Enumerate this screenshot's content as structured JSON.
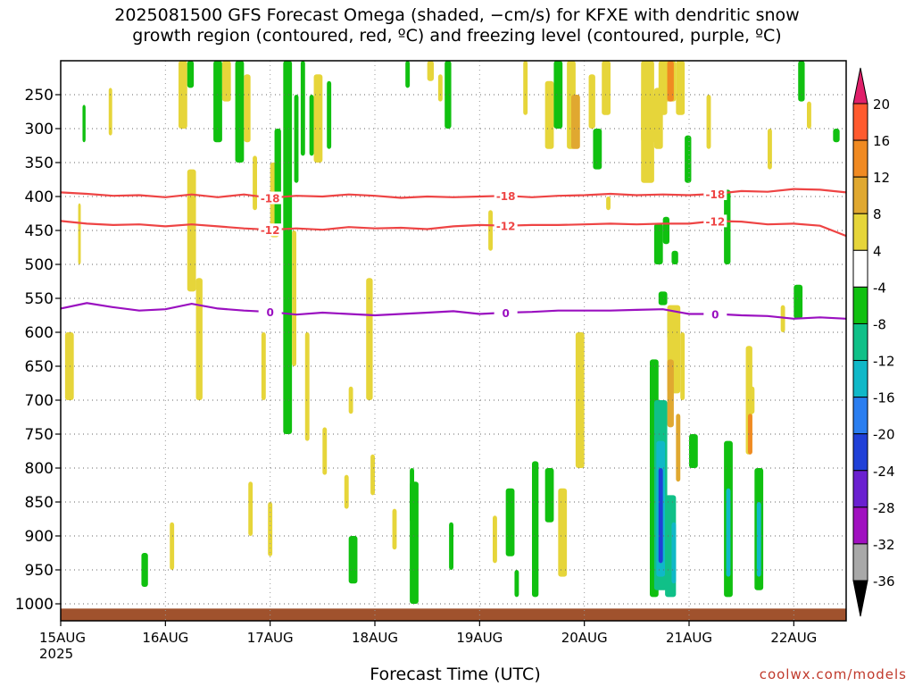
{
  "title": "2025081500 GFS Forecast Omega (shaded, −cm/s) for KFXE with dendritic snow\ngrowth region (contoured, red, ºC) and freezing level (contoured, purple, ºC)",
  "credit": "coolwx.com/models",
  "chart_data": {
    "type": "heatmap",
    "xlabel": "Forecast Time (UTC)",
    "ylabel": "",
    "x_ticks": [
      "15AUG\n2025",
      "16AUG",
      "17AUG",
      "18AUG",
      "19AUG",
      "20AUG",
      "21AUG",
      "22AUG"
    ],
    "x_range_hours": [
      0,
      180
    ],
    "y_scale": "pressure",
    "y_ticks": [
      250,
      300,
      350,
      400,
      450,
      500,
      550,
      600,
      650,
      700,
      750,
      800,
      850,
      900,
      950,
      1000
    ],
    "y_range_hpa": [
      200,
      1025
    ],
    "colorbar": {
      "ticks": [
        20,
        16,
        12,
        8,
        4,
        -4,
        -8,
        -12,
        -16,
        -20,
        -24,
        -28,
        -32,
        -36
      ],
      "bins": [
        {
          "from": 20,
          "to": 24,
          "color": "#ff3f3f"
        },
        {
          "from": 16,
          "to": 20,
          "color": "#ff5a2e"
        },
        {
          "from": 12,
          "to": 16,
          "color": "#f08a22"
        },
        {
          "from": 8,
          "to": 12,
          "color": "#e0a830"
        },
        {
          "from": 4,
          "to": 8,
          "color": "#e6d53a"
        },
        {
          "from": -4,
          "to": 4,
          "color": "#ffffff"
        },
        {
          "from": -8,
          "to": -4,
          "color": "#10c010"
        },
        {
          "from": -12,
          "to": -8,
          "color": "#10c088"
        },
        {
          "from": -16,
          "to": -12,
          "color": "#10b8c8"
        },
        {
          "from": -20,
          "to": -16,
          "color": "#2a7ef0"
        },
        {
          "from": -24,
          "to": -20,
          "color": "#2040d8"
        },
        {
          "from": -28,
          "to": -24,
          "color": "#6a20d0"
        },
        {
          "from": -32,
          "to": -28,
          "color": "#a010c0"
        },
        {
          "from": -36,
          "to": -32,
          "color": "#a8a8a8"
        }
      ],
      "top_arrow_color": "#e0206a",
      "bottom_arrow_color": "#000000"
    },
    "contours": [
      {
        "label": "-18",
        "color": "#ee4444",
        "points": [
          [
            0,
            394
          ],
          [
            6,
            396
          ],
          [
            12,
            399
          ],
          [
            18,
            398
          ],
          [
            24,
            401
          ],
          [
            30,
            397
          ],
          [
            36,
            401
          ],
          [
            42,
            397
          ],
          [
            48,
            402
          ],
          [
            54,
            399
          ],
          [
            60,
            400
          ],
          [
            66,
            397
          ],
          [
            72,
            399
          ],
          [
            78,
            402
          ],
          [
            84,
            400
          ],
          [
            90,
            401
          ],
          [
            96,
            400
          ],
          [
            102,
            399
          ],
          [
            108,
            401
          ],
          [
            114,
            399
          ],
          [
            120,
            398
          ],
          [
            126,
            396
          ],
          [
            132,
            398
          ],
          [
            138,
            397
          ],
          [
            144,
            398
          ],
          [
            150,
            396
          ],
          [
            156,
            392
          ],
          [
            162,
            393
          ],
          [
            168,
            389
          ],
          [
            174,
            390
          ],
          [
            180,
            394
          ]
        ]
      },
      {
        "label": "-12",
        "color": "#ee4444",
        "points": [
          [
            0,
            436
          ],
          [
            6,
            440
          ],
          [
            12,
            442
          ],
          [
            18,
            441
          ],
          [
            24,
            444
          ],
          [
            30,
            441
          ],
          [
            36,
            444
          ],
          [
            42,
            447
          ],
          [
            48,
            449
          ],
          [
            54,
            447
          ],
          [
            60,
            449
          ],
          [
            66,
            445
          ],
          [
            72,
            447
          ],
          [
            78,
            446
          ],
          [
            84,
            448
          ],
          [
            90,
            444
          ],
          [
            96,
            442
          ],
          [
            102,
            443
          ],
          [
            108,
            442
          ],
          [
            114,
            442
          ],
          [
            120,
            441
          ],
          [
            126,
            440
          ],
          [
            132,
            441
          ],
          [
            138,
            440
          ],
          [
            144,
            440
          ],
          [
            150,
            436
          ],
          [
            156,
            437
          ],
          [
            162,
            441
          ],
          [
            168,
            440
          ],
          [
            174,
            443
          ],
          [
            180,
            458
          ]
        ]
      },
      {
        "label": "0",
        "color": "#9a10c0",
        "points": [
          [
            0,
            565
          ],
          [
            6,
            557
          ],
          [
            12,
            563
          ],
          [
            18,
            568
          ],
          [
            24,
            566
          ],
          [
            30,
            558
          ],
          [
            36,
            565
          ],
          [
            42,
            568
          ],
          [
            48,
            570
          ],
          [
            54,
            574
          ],
          [
            60,
            571
          ],
          [
            66,
            573
          ],
          [
            72,
            575
          ],
          [
            78,
            573
          ],
          [
            84,
            571
          ],
          [
            90,
            569
          ],
          [
            96,
            573
          ],
          [
            102,
            571
          ],
          [
            108,
            570
          ],
          [
            114,
            568
          ],
          [
            120,
            568
          ],
          [
            126,
            568
          ],
          [
            132,
            567
          ],
          [
            138,
            566
          ],
          [
            144,
            573
          ],
          [
            150,
            573
          ],
          [
            156,
            575
          ],
          [
            162,
            576
          ],
          [
            168,
            580
          ],
          [
            174,
            578
          ],
          [
            180,
            580
          ]
        ]
      }
    ],
    "shaded_regions": [
      {
        "x0": 5,
        "x1": 5.7,
        "p0": 265,
        "p1": 320,
        "value": -6
      },
      {
        "x0": 11,
        "x1": 11.8,
        "p0": 240,
        "p1": 310,
        "value": 6
      },
      {
        "x0": 1,
        "x1": 3,
        "p0": 600,
        "p1": 700,
        "value": 6
      },
      {
        "x0": 4,
        "x1": 4.6,
        "p0": 410,
        "p1": 500,
        "value": 6
      },
      {
        "x0": 18.5,
        "x1": 20,
        "p0": 925,
        "p1": 975,
        "value": -6
      },
      {
        "x0": 25,
        "x1": 26,
        "p0": 880,
        "p1": 950,
        "value": 6
      },
      {
        "x0": 27,
        "x1": 29,
        "p0": 200,
        "p1": 300,
        "value": 6
      },
      {
        "x0": 29,
        "x1": 30.5,
        "p0": 200,
        "p1": 240,
        "value": -6
      },
      {
        "x0": 29,
        "x1": 31,
        "p0": 360,
        "p1": 540,
        "value": 6
      },
      {
        "x0": 31,
        "x1": 32.5,
        "p0": 520,
        "p1": 700,
        "value": 6
      },
      {
        "x0": 35,
        "x1": 37,
        "p0": 200,
        "p1": 320,
        "value": -6
      },
      {
        "x0": 37,
        "x1": 39,
        "p0": 200,
        "p1": 260,
        "value": 6
      },
      {
        "x0": 40,
        "x1": 42,
        "p0": 200,
        "p1": 350,
        "value": -6
      },
      {
        "x0": 42,
        "x1": 43.5,
        "p0": 220,
        "p1": 320,
        "value": 6
      },
      {
        "x0": 43,
        "x1": 44,
        "p0": 820,
        "p1": 900,
        "value": 6
      },
      {
        "x0": 44,
        "x1": 45,
        "p0": 340,
        "p1": 420,
        "value": 6
      },
      {
        "x0": 46,
        "x1": 47,
        "p0": 600,
        "p1": 700,
        "value": 6
      },
      {
        "x0": 47.5,
        "x1": 48.5,
        "p0": 850,
        "p1": 930,
        "value": 6
      },
      {
        "x0": 48,
        "x1": 50,
        "p0": 350,
        "p1": 460,
        "value": 6
      },
      {
        "x0": 49,
        "x1": 50.5,
        "p0": 300,
        "p1": 450,
        "value": -6
      },
      {
        "x0": 51,
        "x1": 53,
        "p0": 200,
        "p1": 750,
        "value": -6
      },
      {
        "x0": 53,
        "x1": 54,
        "p0": 450,
        "p1": 650,
        "value": 6
      },
      {
        "x0": 53.5,
        "x1": 54.5,
        "p0": 250,
        "p1": 380,
        "value": -6
      },
      {
        "x0": 55,
        "x1": 56,
        "p0": 200,
        "p1": 340,
        "value": -6
      },
      {
        "x0": 56,
        "x1": 57,
        "p0": 600,
        "p1": 760,
        "value": 6
      },
      {
        "x0": 57,
        "x1": 58,
        "p0": 250,
        "p1": 340,
        "value": -6
      },
      {
        "x0": 58,
        "x1": 60,
        "p0": 220,
        "p1": 350,
        "value": 6
      },
      {
        "x0": 60,
        "x1": 61,
        "p0": 740,
        "p1": 810,
        "value": 6
      },
      {
        "x0": 61,
        "x1": 62,
        "p0": 230,
        "p1": 330,
        "value": -6
      },
      {
        "x0": 65,
        "x1": 66,
        "p0": 810,
        "p1": 860,
        "value": 6
      },
      {
        "x0": 66,
        "x1": 68,
        "p0": 900,
        "p1": 970,
        "value": -6
      },
      {
        "x0": 66,
        "x1": 67,
        "p0": 680,
        "p1": 720,
        "value": 6
      },
      {
        "x0": 70,
        "x1": 71.5,
        "p0": 520,
        "p1": 700,
        "value": 6
      },
      {
        "x0": 71,
        "x1": 72,
        "p0": 780,
        "p1": 840,
        "value": 6
      },
      {
        "x0": 76,
        "x1": 77,
        "p0": 860,
        "p1": 920,
        "value": 6
      },
      {
        "x0": 79,
        "x1": 80,
        "p0": 200,
        "p1": 240,
        "value": -6
      },
      {
        "x0": 80,
        "x1": 81,
        "p0": 800,
        "p1": 880,
        "value": -6
      },
      {
        "x0": 80,
        "x1": 82,
        "p0": 820,
        "p1": 1000,
        "value": -8
      },
      {
        "x0": 84,
        "x1": 85.5,
        "p0": 200,
        "p1": 230,
        "value": 6
      },
      {
        "x0": 86.5,
        "x1": 87.5,
        "p0": 220,
        "p1": 260,
        "value": 6
      },
      {
        "x0": 88,
        "x1": 89.5,
        "p0": 200,
        "p1": 300,
        "value": -6
      },
      {
        "x0": 89,
        "x1": 90,
        "p0": 880,
        "p1": 950,
        "value": -6
      },
      {
        "x0": 98,
        "x1": 99,
        "p0": 420,
        "p1": 480,
        "value": 6
      },
      {
        "x0": 99,
        "x1": 100,
        "p0": 870,
        "p1": 940,
        "value": 6
      },
      {
        "x0": 102,
        "x1": 104,
        "p0": 830,
        "p1": 930,
        "value": -6
      },
      {
        "x0": 104,
        "x1": 105,
        "p0": 950,
        "p1": 990,
        "value": -6
      },
      {
        "x0": 106,
        "x1": 107,
        "p0": 200,
        "p1": 280,
        "value": 6
      },
      {
        "x0": 108,
        "x1": 109.5,
        "p0": 790,
        "p1": 990,
        "value": -6
      },
      {
        "x0": 111,
        "x1": 113,
        "p0": 230,
        "p1": 330,
        "value": 6
      },
      {
        "x0": 111,
        "x1": 113,
        "p0": 800,
        "p1": 880,
        "value": -6
      },
      {
        "x0": 113,
        "x1": 115,
        "p0": 200,
        "p1": 300,
        "value": -6
      },
      {
        "x0": 114,
        "x1": 116,
        "p0": 830,
        "p1": 960,
        "value": 6
      },
      {
        "x0": 116,
        "x1": 118,
        "p0": 200,
        "p1": 330,
        "value": 6
      },
      {
        "x0": 117,
        "x1": 119,
        "p0": 250,
        "p1": 330,
        "value": 10
      },
      {
        "x0": 118,
        "x1": 120,
        "p0": 600,
        "p1": 800,
        "value": 6
      },
      {
        "x0": 121,
        "x1": 122.5,
        "p0": 220,
        "p1": 300,
        "value": 6
      },
      {
        "x0": 122,
        "x1": 124,
        "p0": 300,
        "p1": 360,
        "value": -6
      },
      {
        "x0": 124,
        "x1": 126,
        "p0": 200,
        "p1": 280,
        "value": 6
      },
      {
        "x0": 125,
        "x1": 126,
        "p0": 400,
        "p1": 420,
        "value": 6
      },
      {
        "x0": 133,
        "x1": 137,
        "p0": 250,
        "p1": 320,
        "value": 6
      },
      {
        "x0": 133,
        "x1": 136,
        "p0": 200,
        "p1": 380,
        "value": 6
      },
      {
        "x0": 136,
        "x1": 138,
        "p0": 240,
        "p1": 330,
        "value": 6
      },
      {
        "x0": 137,
        "x1": 139,
        "p0": 200,
        "p1": 280,
        "value": 6
      },
      {
        "x0": 138,
        "x1": 141,
        "p0": 200,
        "p1": 260,
        "value": 6
      },
      {
        "x0": 139,
        "x1": 140.5,
        "p0": 200,
        "p1": 260,
        "value": 12
      },
      {
        "x0": 141,
        "x1": 143,
        "p0": 200,
        "p1": 280,
        "value": 6
      },
      {
        "x0": 143,
        "x1": 144.5,
        "p0": 310,
        "p1": 380,
        "value": -6
      },
      {
        "x0": 148,
        "x1": 149,
        "p0": 250,
        "p1": 330,
        "value": 6
      },
      {
        "x0": 138,
        "x1": 139.5,
        "p0": 430,
        "p1": 470,
        "value": -6
      },
      {
        "x0": 140,
        "x1": 141.5,
        "p0": 480,
        "p1": 500,
        "value": -6
      },
      {
        "x0": 136,
        "x1": 138,
        "p0": 440,
        "p1": 500,
        "value": -6
      },
      {
        "x0": 137,
        "x1": 139,
        "p0": 540,
        "p1": 560,
        "value": -6
      },
      {
        "x0": 139,
        "x1": 141,
        "p0": 570,
        "p1": 610,
        "value": -6
      },
      {
        "x0": 139,
        "x1": 142,
        "p0": 560,
        "p1": 690,
        "value": 6
      },
      {
        "x0": 139,
        "x1": 140.5,
        "p0": 640,
        "p1": 740,
        "value": 10
      },
      {
        "x0": 141,
        "x1": 142,
        "p0": 720,
        "p1": 820,
        "value": 10
      },
      {
        "x0": 142,
        "x1": 143,
        "p0": 600,
        "p1": 700,
        "value": 6
      },
      {
        "x0": 135,
        "x1": 137,
        "p0": 640,
        "p1": 990,
        "value": -6
      },
      {
        "x0": 136,
        "x1": 139,
        "p0": 700,
        "p1": 980,
        "value": -10
      },
      {
        "x0": 136.5,
        "x1": 138.5,
        "p0": 760,
        "p1": 960,
        "value": -14
      },
      {
        "x0": 137,
        "x1": 138,
        "p0": 800,
        "p1": 940,
        "value": -22
      },
      {
        "x0": 138.5,
        "x1": 141,
        "p0": 840,
        "p1": 990,
        "value": -10
      },
      {
        "x0": 140,
        "x1": 141,
        "p0": 880,
        "p1": 970,
        "value": -14
      },
      {
        "x0": 144,
        "x1": 146,
        "p0": 750,
        "p1": 800,
        "value": -6
      },
      {
        "x0": 152,
        "x1": 153.5,
        "p0": 390,
        "p1": 500,
        "value": -6
      },
      {
        "x0": 152,
        "x1": 154,
        "p0": 760,
        "p1": 990,
        "value": -6
      },
      {
        "x0": 152.5,
        "x1": 153.5,
        "p0": 830,
        "p1": 960,
        "value": -14
      },
      {
        "x0": 157,
        "x1": 158.5,
        "p0": 620,
        "p1": 780,
        "value": 6
      },
      {
        "x0": 157.5,
        "x1": 158.5,
        "p0": 720,
        "p1": 780,
        "value": 12
      },
      {
        "x0": 158,
        "x1": 159,
        "p0": 680,
        "p1": 720,
        "value": 6
      },
      {
        "x0": 159,
        "x1": 161,
        "p0": 800,
        "p1": 980,
        "value": -6
      },
      {
        "x0": 159.5,
        "x1": 160.5,
        "p0": 850,
        "p1": 960,
        "value": -14
      },
      {
        "x0": 162,
        "x1": 163,
        "p0": 300,
        "p1": 360,
        "value": 6
      },
      {
        "x0": 165,
        "x1": 166,
        "p0": 560,
        "p1": 600,
        "value": 6
      },
      {
        "x0": 168,
        "x1": 170,
        "p0": 530,
        "p1": 580,
        "value": -6
      },
      {
        "x0": 169,
        "x1": 170.5,
        "p0": 200,
        "p1": 260,
        "value": -6
      },
      {
        "x0": 171,
        "x1": 172,
        "p0": 260,
        "p1": 300,
        "value": 6
      },
      {
        "x0": 177,
        "x1": 178.5,
        "p0": 300,
        "p1": 320,
        "value": -6
      }
    ],
    "ground": {
      "p0": 1007,
      "p1": 1025,
      "color": "#a0522d"
    }
  }
}
